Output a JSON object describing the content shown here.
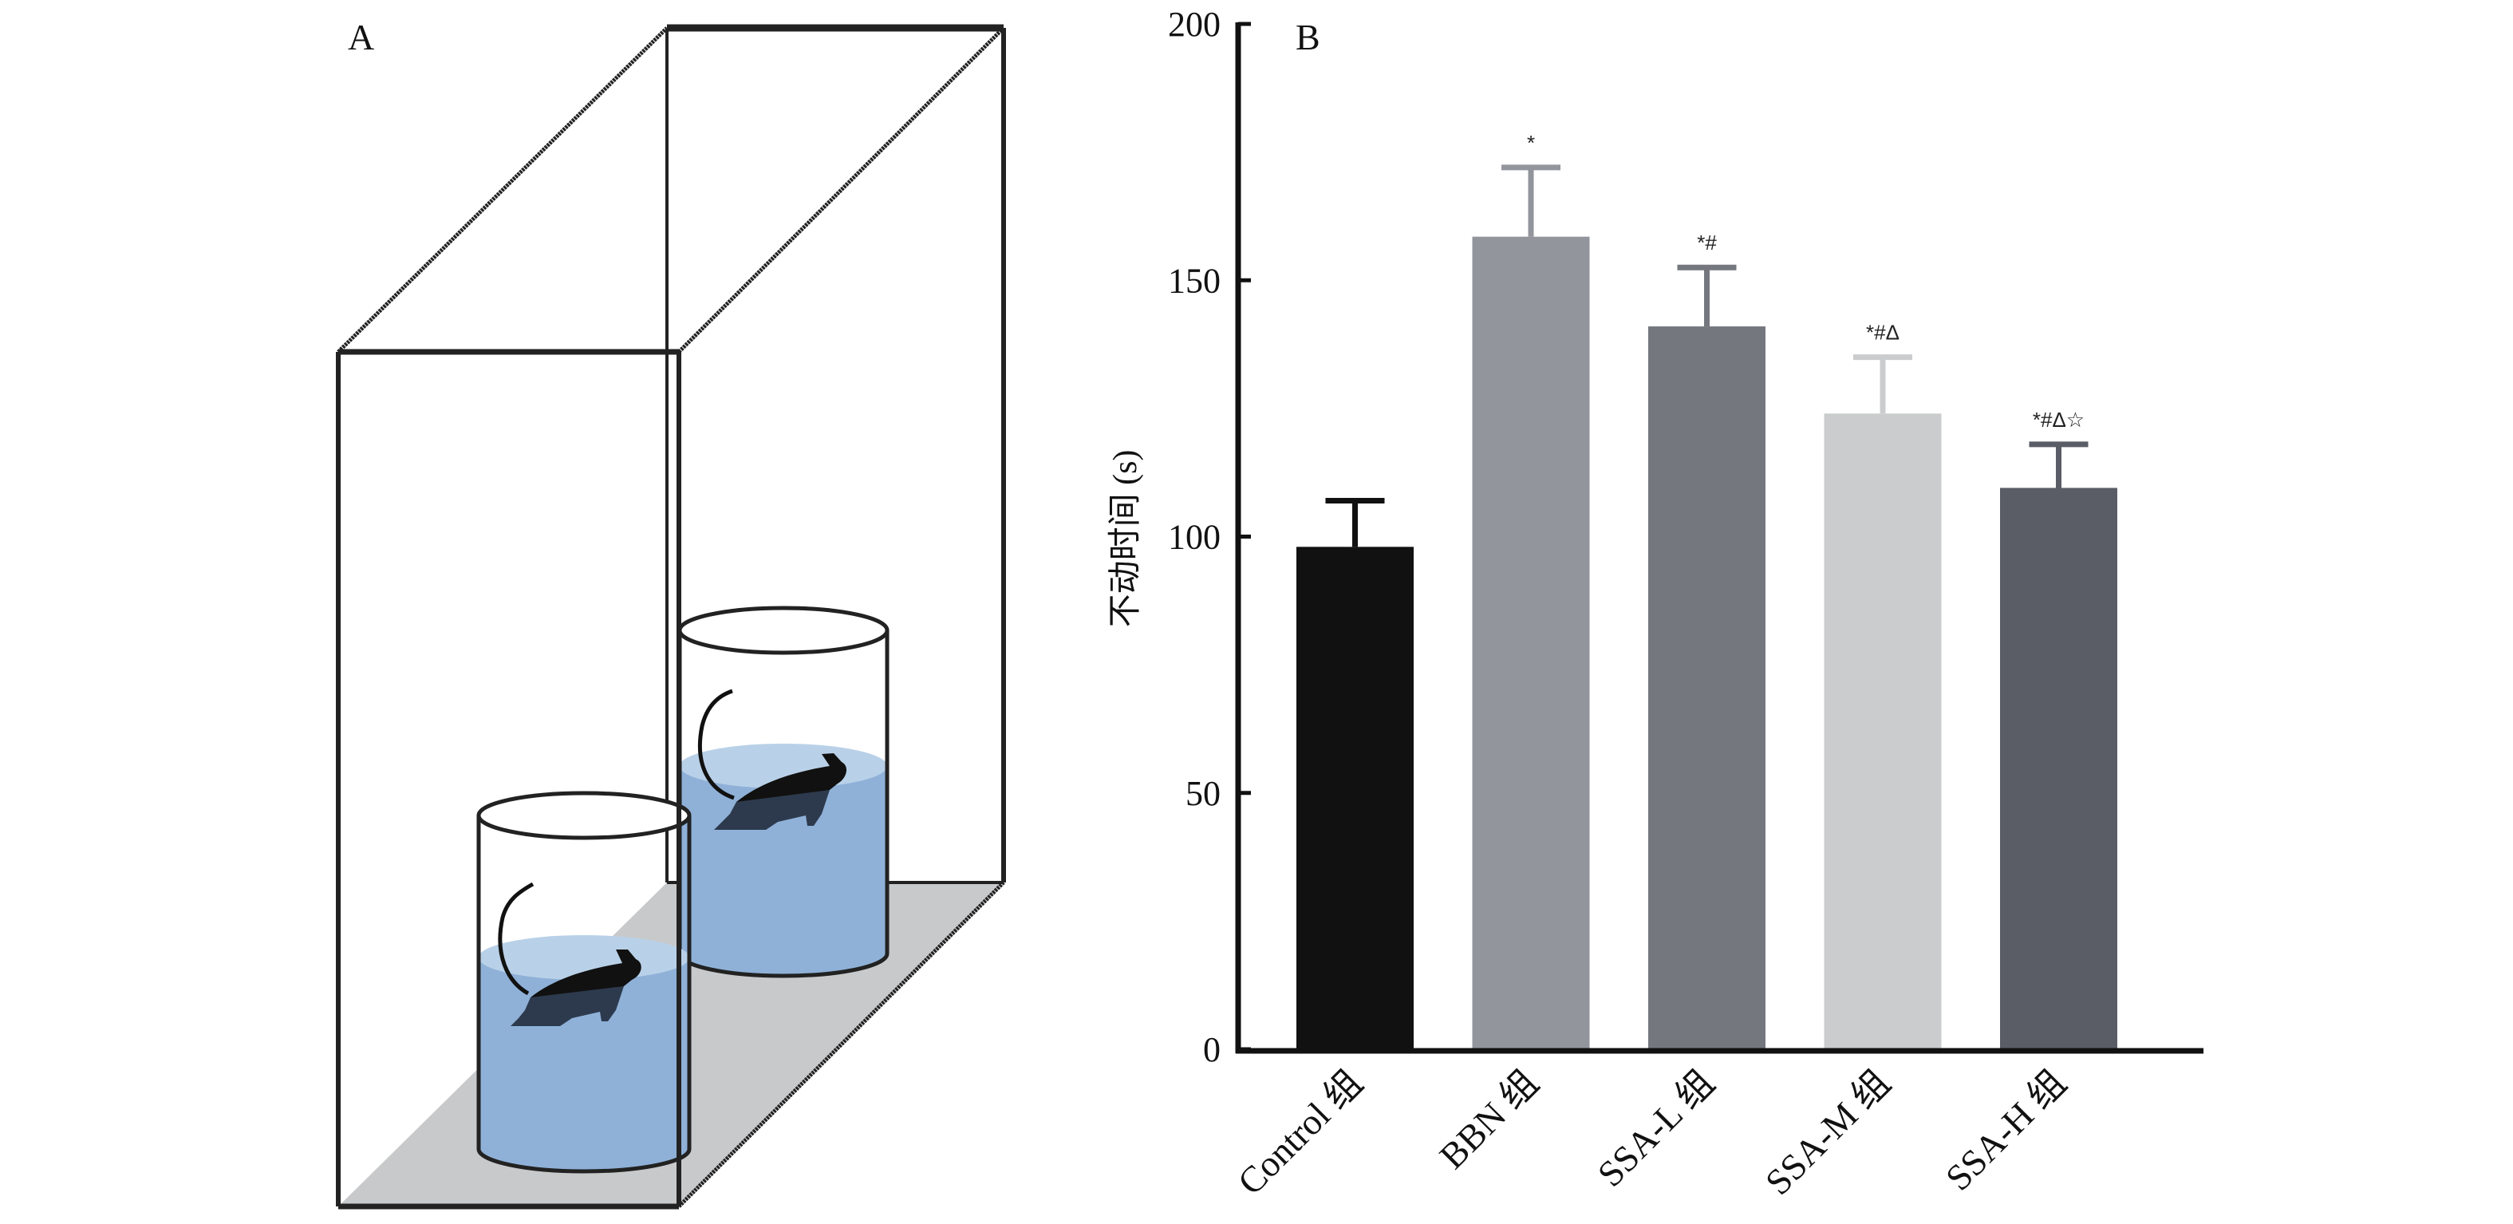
{
  "panel_a": {
    "label": "A",
    "colors": {
      "water_body": "#8fb1d8",
      "water_surface": "#b9d1e8",
      "floor": "#c8c9cb",
      "mouse": "#111111",
      "mouse_submerged": "#2d3a4e"
    }
  },
  "chart_data": {
    "type": "bar",
    "panel_label": "B",
    "title": "",
    "xlabel": "",
    "ylabel": "不动时间 (s)",
    "ylim": [
      0,
      200
    ],
    "yticks": [
      0,
      50,
      100,
      150,
      200
    ],
    "grid": false,
    "legend": "none",
    "categories": [
      "Control 组",
      "BBN 组",
      "SSA-L 组",
      "SSA-M 组",
      "SSA-H 组"
    ],
    "values": [
      98,
      158.5,
      141,
      124,
      109.5
    ],
    "error_upper": [
      107,
      172,
      152.5,
      135,
      118
    ],
    "significance": [
      "",
      "*",
      "*#",
      "*#Δ",
      "*#Δ☆"
    ],
    "colors": [
      "#111111",
      "#93959d",
      "#74777e",
      "#cbcccd",
      "#5a5d65"
    ]
  }
}
